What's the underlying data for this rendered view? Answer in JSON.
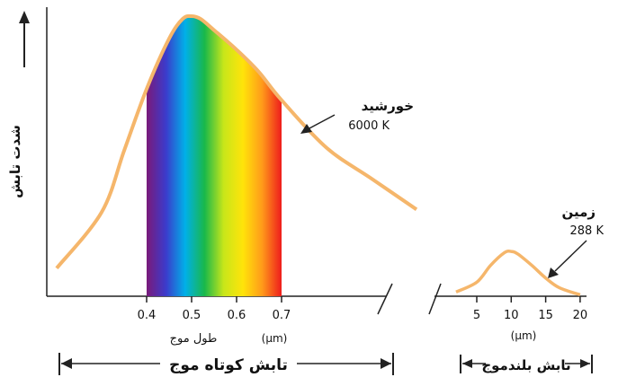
{
  "chart_data": [
    {
      "type": "line",
      "title": "",
      "ylabel": "شدت تابش",
      "xlabel": "طول موج",
      "xunit": "(µm)",
      "x_ticks": [
        "0.4",
        "0.5",
        "0.6",
        "0.7"
      ],
      "visible_band": [
        0.4,
        0.7
      ],
      "series": [
        {
          "name": "خورشید",
          "temperature_label": "6000 K",
          "color": "#f5b66b",
          "x": [
            0.2,
            0.3,
            0.35,
            0.4,
            0.45,
            0.48,
            0.5,
            0.52,
            0.55,
            0.6,
            0.65,
            0.7,
            0.8,
            0.9,
            1.0
          ],
          "y": [
            0.1,
            0.3,
            0.52,
            0.74,
            0.92,
            0.99,
            1.0,
            0.99,
            0.95,
            0.88,
            0.8,
            0.7,
            0.53,
            0.42,
            0.31
          ]
        }
      ],
      "band_label": "تابش کوتاه موج",
      "grid": false
    },
    {
      "type": "line",
      "title": "",
      "xunit": "(µm)",
      "x_ticks": [
        "5",
        "10",
        "15",
        "20"
      ],
      "series": [
        {
          "name": "زمین",
          "temperature_label": "288 K",
          "color": "#f5b66b",
          "x": [
            2,
            5,
            7,
            9,
            10,
            11,
            13,
            15,
            17,
            20
          ],
          "y": [
            0.015,
            0.05,
            0.11,
            0.155,
            0.16,
            0.15,
            0.11,
            0.065,
            0.03,
            0.005
          ]
        }
      ],
      "band_label": "تابش بلندموج",
      "grid": false
    }
  ],
  "colors": {
    "curve": "#f5b66b",
    "axis": "#222222",
    "spectrum": [
      "#7a1a7a",
      "#3b3bcc",
      "#00b0e8",
      "#19b84a",
      "#c8e61a",
      "#ffe40a",
      "#ff9a1a",
      "#ee1c1c"
    ]
  },
  "ui": {
    "sun_arrow_label": "خورشید",
    "earth_arrow_label": "زمین"
  }
}
